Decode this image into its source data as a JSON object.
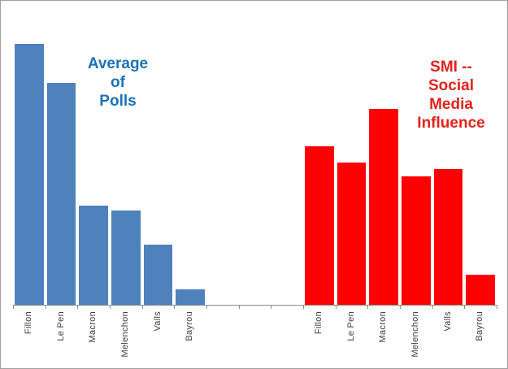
{
  "chart_data": {
    "type": "bar",
    "categories": [
      "Fillon",
      "Le Pen",
      "Macron",
      "Melenchon",
      "Valls",
      "Bayrou"
    ],
    "series": [
      {
        "name": "Average of Polls",
        "color": "#4F81BD",
        "slot_start": 0,
        "values": [
          100,
          85,
          38,
          36,
          23,
          6
        ]
      },
      {
        "name": "SMI -- Social Media Influence",
        "color": "#FF0000",
        "slot_start": 9,
        "values": [
          60.5,
          54.5,
          75,
          49,
          52,
          11.5
        ]
      }
    ],
    "total_slots": 15,
    "ylim": [
      0,
      100
    ],
    "y_axis_visible": false,
    "grid": false,
    "title": "",
    "xlabel": "",
    "ylabel": "",
    "annotations": [
      {
        "text": "Average\nof\nPolls",
        "color": "#1B72B8",
        "position": "left-upper"
      },
      {
        "text": "SMI --\nSocial\nMedia\nInfluence",
        "color": "#E0241C",
        "position": "right-upper"
      }
    ]
  },
  "colors": {
    "axis": "#8C8C8C",
    "category_label": "#404040",
    "border": "#A0A0A0",
    "background": "#FFFFFF"
  }
}
